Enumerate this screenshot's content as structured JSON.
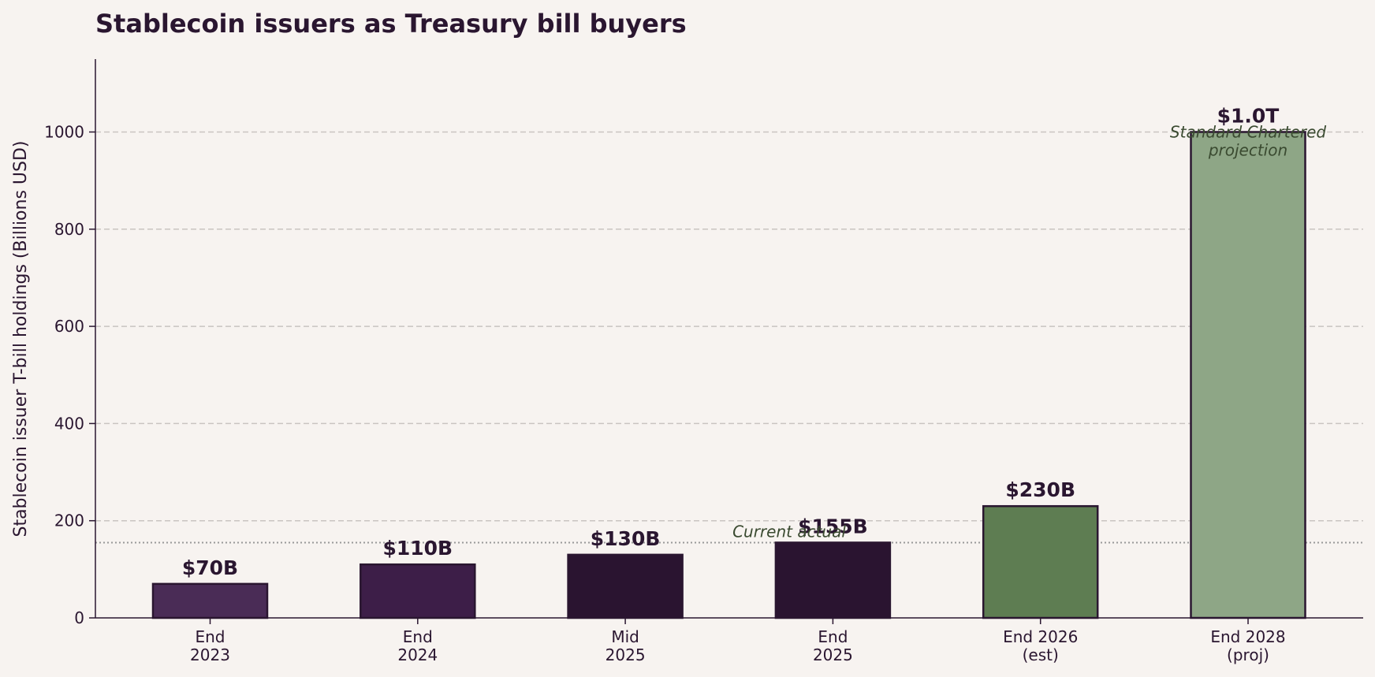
{
  "chart_data": {
    "type": "bar",
    "title": "Stablecoin issuers as Treasury bill buyers",
    "xlabel": "",
    "ylabel": "Stablecoin issuer T-bill holdings (Billions USD)",
    "categories": [
      "End\n2023",
      "End\n2024",
      "Mid\n2025",
      "End\n2025",
      "End 2026\n(est)",
      "End 2028\n(proj)"
    ],
    "values": [
      70,
      110,
      130,
      155,
      230,
      1000
    ],
    "data_labels": [
      "$70B",
      "$110B",
      "$130B",
      "$155B",
      "$230B",
      "$1.0T"
    ],
    "bar_colors": [
      "#4a2c56",
      "#3d1e48",
      "#2a1430",
      "#2a1430",
      "#5e7d52",
      "#8ea686"
    ],
    "bar_edge_color": "#2a1630",
    "ylim": [
      0,
      1150
    ],
    "yticks": [
      0,
      200,
      400,
      600,
      800,
      1000
    ],
    "grid": "horizontal dashed",
    "reference_line": {
      "value": 155,
      "label": "Current actual",
      "style": "dotted",
      "color": "#999999"
    },
    "annotations": [
      {
        "text": "Standard Chartered\nprojection",
        "category_index": 5,
        "value": 1000
      }
    ],
    "colors": {
      "background": "#f7f3f0",
      "text": "#2a1630",
      "grid": "#c9c4c1",
      "annotation": "#3a4a30"
    }
  }
}
